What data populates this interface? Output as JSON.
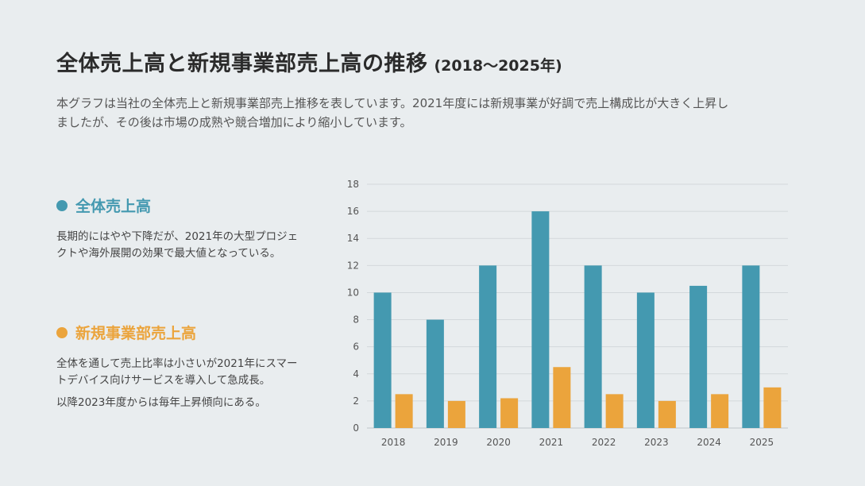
{
  "header": {
    "title": "全体売上高と新規事業部売上高の推移",
    "range": "(2018〜2025年)"
  },
  "description": "本グラフは当社の全体売上と新規事業部売上推移を表しています。2021年度には新規事業が好調で売上構成比が大きく上昇しましたが、その後は市場の成熟や競合増加により縮小しています。",
  "legend": {
    "total": {
      "label": "全体売上高",
      "color": "#4499b0",
      "paragraphs": [
        "長期的にはやや下降だが、2021年の大型プロジェクトや海外展開の効果で最大値となっている。"
      ]
    },
    "new": {
      "label": "新規事業部売上高",
      "color": "#eba43c",
      "paragraphs": [
        "全体を通して売上比率は小さいが2021年にスマートデバイス向けサービスを導入して急成長。",
        "以降2023年度からは毎年上昇傾向にある。"
      ]
    }
  },
  "chart_data": {
    "type": "bar",
    "categories": [
      "2018",
      "2019",
      "2020",
      "2021",
      "2022",
      "2023",
      "2024",
      "2025"
    ],
    "series": [
      {
        "name": "全体売上高",
        "values": [
          10,
          8,
          12,
          16,
          12,
          10,
          10.5,
          12
        ],
        "color": "#4499b0"
      },
      {
        "name": "新規事業部売上高",
        "values": [
          2.5,
          2,
          2.2,
          4.5,
          2.5,
          2,
          2.5,
          3
        ],
        "color": "#eba43c"
      }
    ],
    "ylim": [
      0,
      18
    ],
    "yticks": [
      0,
      2,
      4,
      6,
      8,
      10,
      12,
      14,
      16,
      18
    ],
    "grid": true,
    "xlabel": "",
    "ylabel": ""
  }
}
